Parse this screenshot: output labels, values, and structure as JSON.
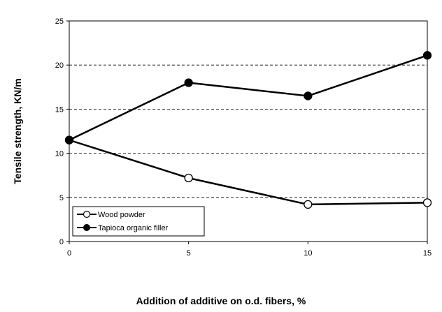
{
  "chart_data": {
    "type": "line",
    "title": "",
    "xlabel": "Addition  of additive  on o.d. fibers,  %",
    "ylabel": "Tensile  strength,  KN/m",
    "x": [
      0,
      5,
      10,
      15
    ],
    "xlim": [
      0,
      15
    ],
    "ylim": [
      0,
      25
    ],
    "x_ticks": [
      "0",
      "5",
      "10",
      "15"
    ],
    "y_ticks": [
      "0",
      "5",
      "10",
      "15",
      "20",
      "25"
    ],
    "grid": "horizontal dashed",
    "legend_position": "bottom-left",
    "series": [
      {
        "name": "Wood powder",
        "marker": "open-circle",
        "color": "#000000",
        "values": [
          11.5,
          7.2,
          4.2,
          4.4
        ]
      },
      {
        "name": "Tapioca organic filler",
        "marker": "filled-circle",
        "color": "#000000",
        "values": [
          11.5,
          18.0,
          16.5,
          21.1
        ]
      }
    ]
  }
}
